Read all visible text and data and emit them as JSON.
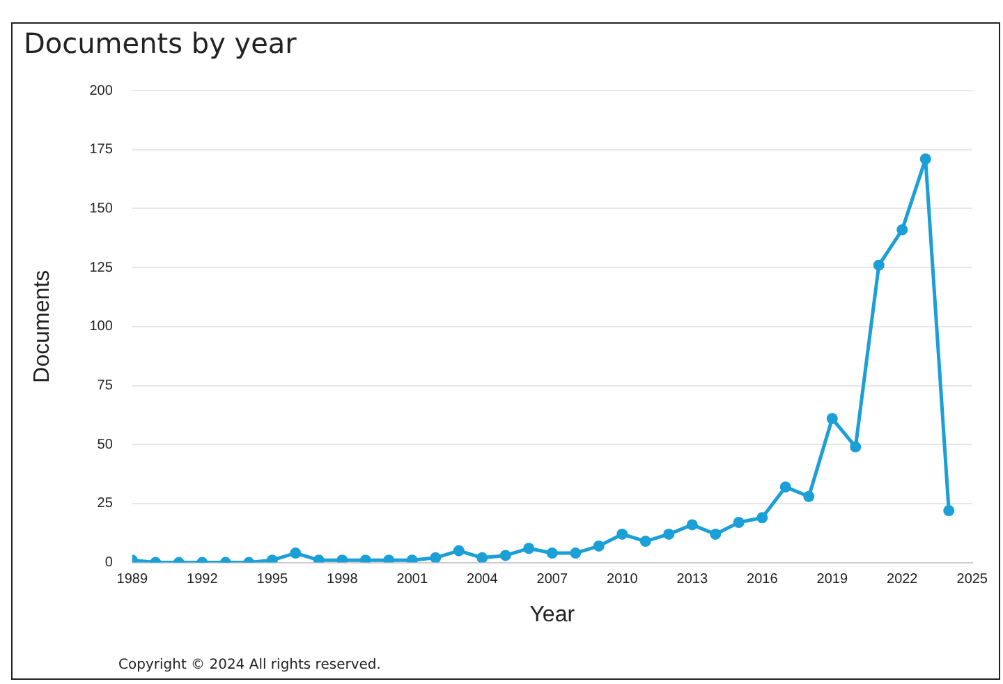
{
  "chart_data": {
    "type": "line",
    "title": "Documents by year",
    "xlabel": "Year",
    "ylabel": "Documents",
    "x": [
      1989,
      1990,
      1991,
      1992,
      1993,
      1994,
      1995,
      1996,
      1997,
      1998,
      1999,
      2000,
      2001,
      2002,
      2003,
      2004,
      2005,
      2006,
      2007,
      2008,
      2009,
      2010,
      2011,
      2012,
      2013,
      2014,
      2015,
      2016,
      2017,
      2018,
      2019,
      2020,
      2021,
      2022,
      2023,
      2024
    ],
    "series": [
      {
        "color": "#1a9fd6",
        "values": [
          1,
          0,
          0,
          0,
          0,
          0,
          1,
          4,
          1,
          1,
          1,
          1,
          1,
          2,
          5,
          2,
          3,
          6,
          4,
          4,
          7,
          12,
          9,
          12,
          16,
          12,
          17,
          19,
          32,
          28,
          61,
          49,
          126,
          141,
          171,
          22
        ]
      }
    ],
    "xlim": [
      1989,
      2025
    ],
    "xticks": [
      1989,
      1992,
      1995,
      1998,
      2001,
      2004,
      2007,
      2010,
      2013,
      2016,
      2019,
      2022,
      2025
    ],
    "ylim": [
      0,
      200
    ],
    "yticks": [
      0,
      25,
      50,
      75,
      100,
      125,
      150,
      175,
      200
    ],
    "grid": "y",
    "legend": false,
    "marker": "circle",
    "line_style": "solid",
    "annotations": [
      "Copyright © 2024 All rights reserved."
    ]
  }
}
